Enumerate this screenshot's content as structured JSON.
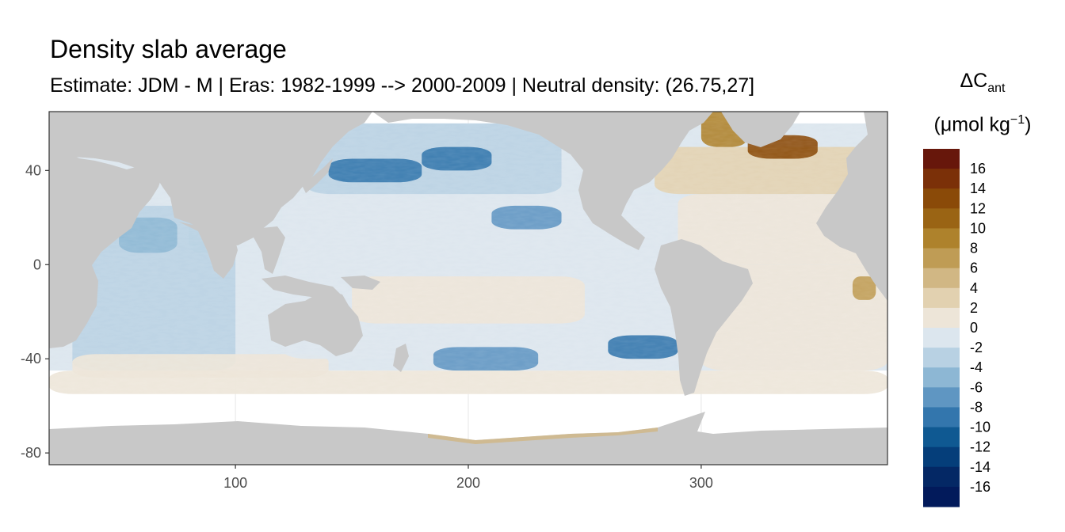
{
  "title": "Density slab average",
  "subtitle": "Estimate: JDM - M | Eras: 1982-1999 --> 2000-2009 | Neutral density: (26.75,27]",
  "legend": {
    "symbol": "ΔC",
    "subscript": "ant",
    "unit_prefix": "(μmol kg",
    "unit_exp": "−1",
    "unit_suffix": ")",
    "labels": [
      "16",
      "14",
      "12",
      "10",
      "8",
      "6",
      "4",
      "2",
      "0",
      "-2",
      "-4",
      "-6",
      "-8",
      "-10",
      "-12",
      "-14",
      "-16"
    ],
    "colors": [
      "#67170b",
      "#7b3008",
      "#8a4a08",
      "#9a6414",
      "#ae822c",
      "#bf9c55",
      "#d1b784",
      "#e2d1b0",
      "#ede5d8",
      "#dce6ee",
      "#b8d1e3",
      "#8db7d4",
      "#5f96c2",
      "#3376ad",
      "#0f5992",
      "#053e7a",
      "#042865",
      "#021a5b"
    ]
  },
  "chart_data": {
    "type": "heatmap",
    "xlabel": "",
    "ylabel": "",
    "x_ticks": [
      100,
      200,
      300
    ],
    "y_ticks": [
      40,
      0,
      -40,
      -80
    ],
    "xlim": [
      20,
      380
    ],
    "ylim": [
      -85,
      65
    ],
    "colors": {
      "land": "#c8c8c8",
      "no_data": "#ffffff",
      "grid": "#ebebeb"
    },
    "regions": [
      {
        "name": "indian-ocean",
        "lon": [
          30,
          100
        ],
        "lat": [
          -45,
          25
        ],
        "value": -3
      },
      {
        "name": "arabian-sea",
        "lon": [
          50,
          75
        ],
        "lat": [
          5,
          20
        ],
        "value": -4
      },
      {
        "name": "bay-of-bengal",
        "lon": [
          80,
          95
        ],
        "lat": [
          5,
          20
        ],
        "value": -3
      },
      {
        "name": "south-indian",
        "lon": [
          30,
          140
        ],
        "lat": [
          -48,
          -38
        ],
        "value": 1
      },
      {
        "name": "pacific-west",
        "lon": [
          120,
          180
        ],
        "lat": [
          -40,
          30
        ],
        "value": -1
      },
      {
        "name": "pacific-east",
        "lon": [
          180,
          290
        ],
        "lat": [
          -45,
          30
        ],
        "value": -1
      },
      {
        "name": "tropical-pacific-south",
        "lon": [
          150,
          250
        ],
        "lat": [
          -25,
          -5
        ],
        "value": 1
      },
      {
        "name": "north-pacific",
        "lon": [
          130,
          240
        ],
        "lat": [
          30,
          60
        ],
        "value": -3
      },
      {
        "name": "kuroshio",
        "lon": [
          140,
          180
        ],
        "lat": [
          35,
          45
        ],
        "value": -9
      },
      {
        "name": "north-pacific-central",
        "lon": [
          180,
          210
        ],
        "lat": [
          40,
          50
        ],
        "value": -8
      },
      {
        "name": "north-pacific-east",
        "lon": [
          210,
          240
        ],
        "lat": [
          15,
          25
        ],
        "value": -7
      },
      {
        "name": "south-pacific-central",
        "lon": [
          185,
          230
        ],
        "lat": [
          -45,
          -35
        ],
        "value": -7
      },
      {
        "name": "south-pacific-east",
        "lon": [
          260,
          290
        ],
        "lat": [
          -40,
          -30
        ],
        "value": -8
      },
      {
        "name": "southern-band",
        "lon": [
          20,
          380
        ],
        "lat": [
          -55,
          -45
        ],
        "value": 1
      },
      {
        "name": "atlantic-south",
        "lon": [
          300,
          380
        ],
        "lat": [
          -45,
          0
        ],
        "value": 1
      },
      {
        "name": "atlantic-tropical",
        "lon": [
          290,
          380
        ],
        "lat": [
          0,
          30
        ],
        "value": 1
      },
      {
        "name": "north-atlantic",
        "lon": [
          280,
          380
        ],
        "lat": [
          30,
          50
        ],
        "value": 3
      },
      {
        "name": "labrador-sea",
        "lon": [
          300,
          320
        ],
        "lat": [
          50,
          65
        ],
        "value": 10
      },
      {
        "name": "irminger",
        "lon": [
          320,
          350
        ],
        "lat": [
          45,
          55
        ],
        "value": 14
      },
      {
        "name": "west-africa",
        "lon": [
          365,
          375
        ],
        "lat": [
          -15,
          -5
        ],
        "value": 8
      }
    ]
  }
}
